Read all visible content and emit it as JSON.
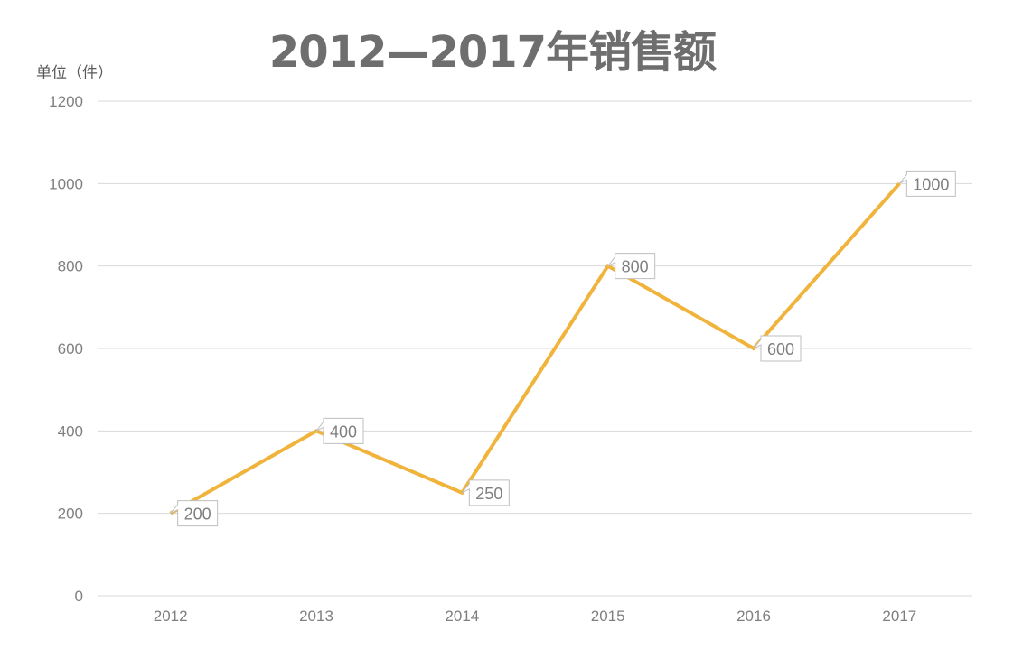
{
  "chart_data": {
    "type": "line",
    "title": "2012—2017年销售额",
    "ylabel": "单位（件）",
    "xlabel": "",
    "categories": [
      "2012",
      "2013",
      "2014",
      "2015",
      "2016",
      "2017"
    ],
    "values": [
      200,
      400,
      250,
      800,
      600,
      1000
    ],
    "data_labels": [
      "200",
      "400",
      "250",
      "800",
      "600",
      "1000"
    ],
    "ylim": [
      0,
      1200
    ],
    "yticks": [
      "0",
      "200",
      "400",
      "600",
      "800",
      "1000",
      "1200"
    ],
    "grid": true,
    "legend": "none",
    "colors": {
      "line": "#F0B43C",
      "grid": "#d9d9d9",
      "text": "#7f7f7f",
      "title": "#6e6e6e"
    }
  }
}
